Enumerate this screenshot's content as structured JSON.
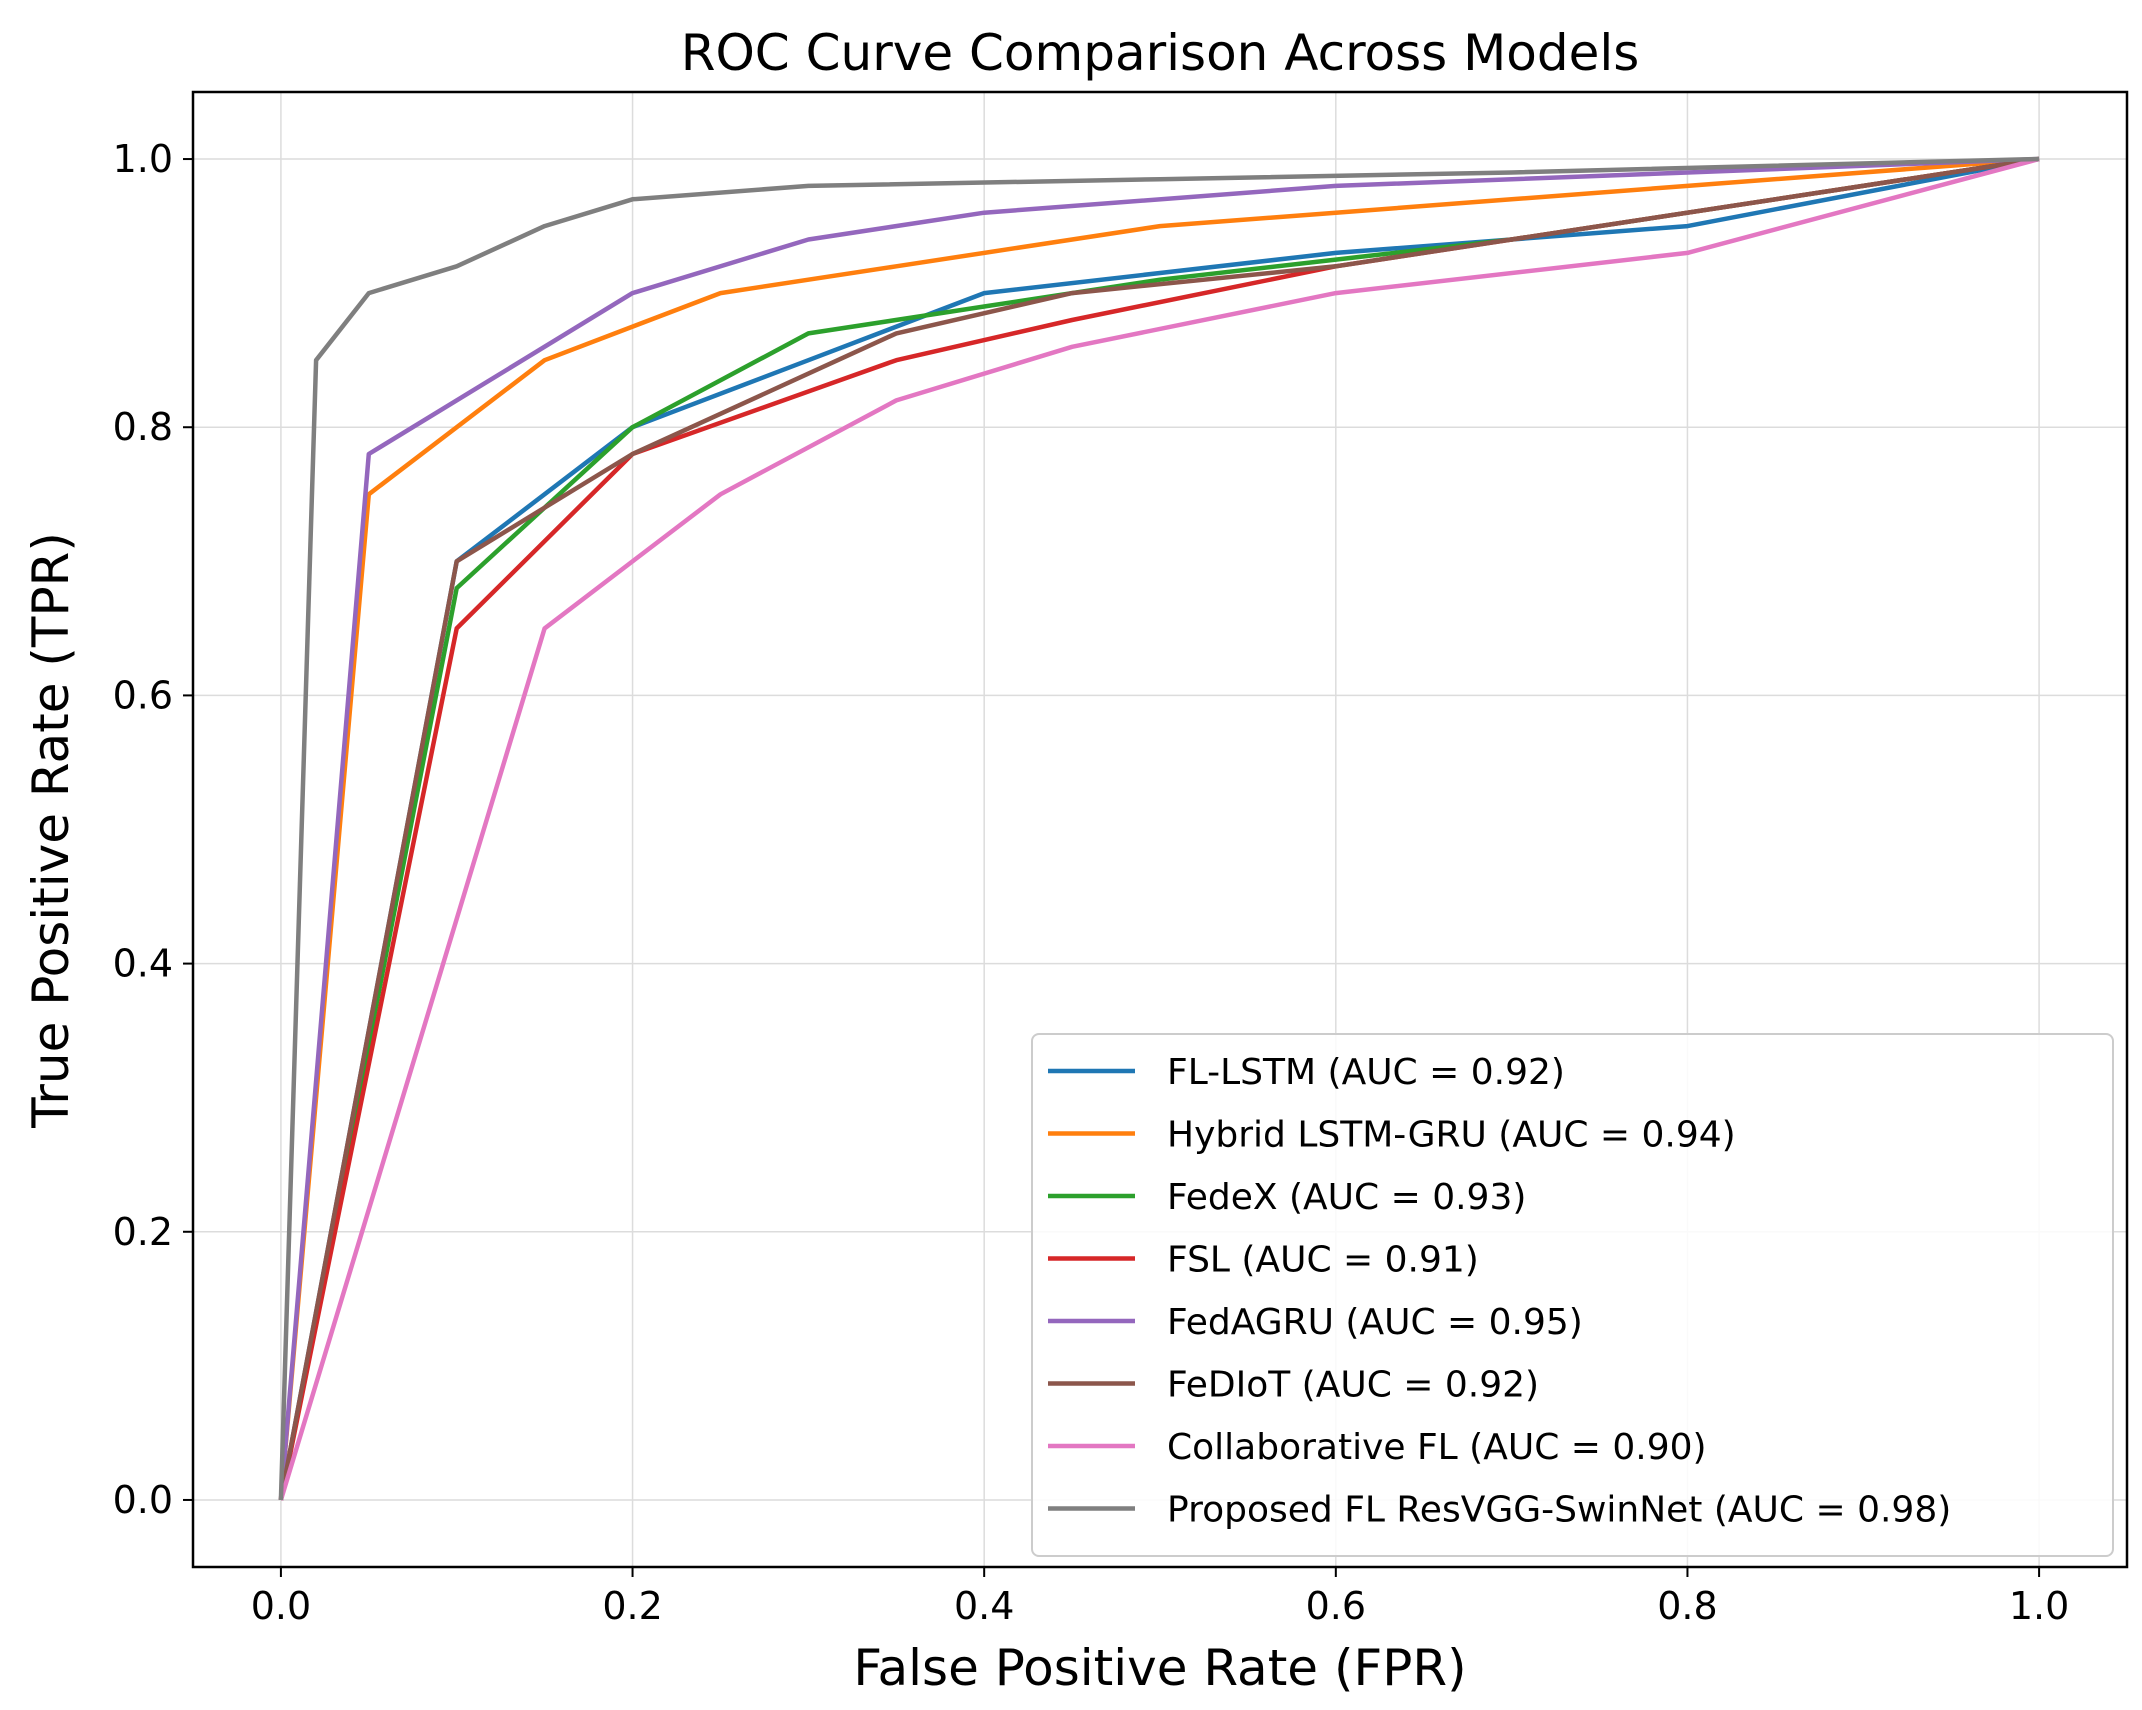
{
  "chart_data": {
    "type": "line",
    "title": "ROC Curve Comparison Across Models",
    "xlabel": "False Positive Rate (FPR)",
    "ylabel": "True Positive Rate (TPR)",
    "xlim": [
      -0.05,
      1.05
    ],
    "ylim": [
      -0.05,
      1.05
    ],
    "xticks": [
      0.0,
      0.2,
      0.4,
      0.6,
      0.8,
      1.0
    ],
    "yticks": [
      0.0,
      0.2,
      0.4,
      0.6,
      0.8,
      1.0
    ],
    "xtick_labels": [
      "0.0",
      "0.2",
      "0.4",
      "0.6",
      "0.8",
      "1.0"
    ],
    "ytick_labels": [
      "0.0",
      "0.2",
      "0.4",
      "0.6",
      "0.8",
      "1.0"
    ],
    "grid": true,
    "legend_position": "lower-right",
    "series": [
      {
        "name": "FL-LSTM (AUC = 0.92)",
        "color": "#1f77b4",
        "x": [
          0,
          0.1,
          0.2,
          0.3,
          0.4,
          0.5,
          0.6,
          0.7,
          0.8,
          1.0
        ],
        "y": [
          0,
          0.7,
          0.8,
          0.85,
          0.9,
          0.915,
          0.93,
          0.94,
          0.95,
          1.0
        ]
      },
      {
        "name": "Hybrid LSTM-GRU (AUC = 0.94)",
        "color": "#ff7f0e",
        "x": [
          0,
          0.05,
          0.15,
          0.25,
          0.35,
          0.5,
          0.6,
          0.7,
          0.8,
          1.0
        ],
        "y": [
          0,
          0.75,
          0.85,
          0.9,
          0.92,
          0.95,
          0.96,
          0.97,
          0.98,
          1.0
        ]
      },
      {
        "name": "FedeX (AUC = 0.93)",
        "color": "#2ca02c",
        "x": [
          0,
          0.1,
          0.2,
          0.3,
          0.4,
          0.5,
          0.6,
          0.7,
          0.8,
          1.0
        ],
        "y": [
          0,
          0.68,
          0.8,
          0.87,
          0.89,
          0.91,
          0.925,
          0.94,
          0.96,
          1.0
        ]
      },
      {
        "name": "FSL (AUC = 0.91)",
        "color": "#d62728",
        "x": [
          0,
          0.1,
          0.2,
          0.35,
          0.45,
          0.6,
          0.7,
          0.8,
          1.0
        ],
        "y": [
          0,
          0.65,
          0.78,
          0.85,
          0.88,
          0.92,
          0.94,
          0.96,
          1.0
        ]
      },
      {
        "name": "FedAGRU (AUC = 0.95)",
        "color": "#9467bd",
        "x": [
          0,
          0.05,
          0.2,
          0.3,
          0.4,
          0.6,
          0.8,
          1.0
        ],
        "y": [
          0,
          0.78,
          0.9,
          0.94,
          0.96,
          0.98,
          0.99,
          1.0
        ]
      },
      {
        "name": "FeDIoT (AUC = 0.92)",
        "color": "#8c564b",
        "x": [
          0,
          0.1,
          0.2,
          0.35,
          0.45,
          0.6,
          0.7,
          0.8,
          1.0
        ],
        "y": [
          0,
          0.7,
          0.78,
          0.87,
          0.9,
          0.92,
          0.94,
          0.96,
          1.0
        ]
      },
      {
        "name": "Collaborative FL (AUC = 0.90)",
        "color": "#e377c2",
        "x": [
          0,
          0.15,
          0.25,
          0.35,
          0.45,
          0.6,
          0.8,
          1.0
        ],
        "y": [
          0,
          0.65,
          0.75,
          0.82,
          0.86,
          0.9,
          0.93,
          1.0
        ]
      },
      {
        "name": "Proposed FL ResVGG-SwinNet (AUC = 0.98)",
        "color": "#7f7f7f",
        "x": [
          0,
          0.02,
          0.05,
          0.1,
          0.15,
          0.2,
          0.3,
          0.5,
          0.7,
          1.0
        ],
        "y": [
          0,
          0.85,
          0.9,
          0.92,
          0.95,
          0.97,
          0.98,
          0.985,
          0.99,
          1.0
        ]
      }
    ]
  }
}
